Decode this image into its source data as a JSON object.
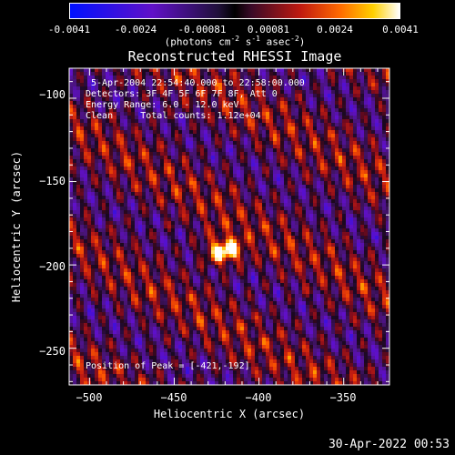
{
  "colorbar": {
    "ticks": [
      "-0.0041",
      "-0.0024",
      "-0.00081",
      "0.00081",
      "0.0024",
      "0.0041"
    ],
    "units": [
      "(photons cm",
      "-2",
      " s",
      "-1",
      " asec",
      "-2",
      ")"
    ]
  },
  "title": "Reconstructed RHESSI Image",
  "annotations": {
    "time": "5-Apr-2004 22:54:40.000 to 22:58:00.000",
    "detectors": "Detectors: 3F 4F 5F 6F 7F 8F, Att 0",
    "energy": "Energy Range: 6.0 - 12.0 keV",
    "clean": "Clean     Total counts: 1.12e+04",
    "peak": "Position of Peak = [-421,-192]"
  },
  "chart_data": {
    "type": "heatmap",
    "title": "Reconstructed RHESSI Image",
    "xlabel": "Heliocentric X (arcsec)",
    "ylabel": "Heliocentric Y (arcsec)",
    "xlim": [
      -512,
      -323
    ],
    "ylim": [
      -272,
      -82
    ],
    "xticks": [
      -500,
      -450,
      -400,
      -350
    ],
    "yticks": [
      -100,
      -150,
      -200,
      -250
    ],
    "xtick_labels": [
      "−500",
      "−450",
      "−400",
      "−350"
    ],
    "ytick_labels": [
      "−100",
      "−150",
      "−200",
      "−250"
    ],
    "colorbar_range": [
      -0.0041,
      0.0041
    ],
    "peak": {
      "x": -421,
      "y": -192
    }
  },
  "footer": {
    "timestamp": "30-Apr-2022 00:53"
  }
}
